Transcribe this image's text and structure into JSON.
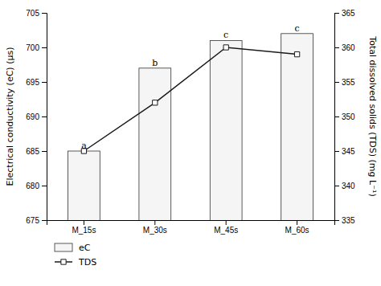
{
  "chart_data": {
    "type": "bar",
    "categories": [
      "M_15s",
      "M_30s",
      "M_45s",
      "M_60s"
    ],
    "series": [
      {
        "name": "eC",
        "type": "bar",
        "color": "#f5f5f5",
        "values": [
          685,
          697,
          701,
          702
        ]
      },
      {
        "name": "TDS",
        "type": "line",
        "color": "#1a1a1a",
        "marker": "square",
        "axis": "y2",
        "values": [
          345,
          352,
          360,
          359
        ]
      }
    ],
    "annotations": [
      "a",
      "b",
      "c",
      "c"
    ],
    "ylabel": "Electrical conductivity (eC) (μs)",
    "y2label": "Total dissolved solids (TDS) (mg L⁻¹)",
    "ylim": [
      675,
      705
    ],
    "yticks": [
      675,
      680,
      685,
      690,
      695,
      700,
      705
    ],
    "y2lim": [
      335,
      365
    ],
    "y2ticks": [
      335,
      340,
      345,
      350,
      355,
      360,
      365
    ],
    "legend": "bottom"
  }
}
